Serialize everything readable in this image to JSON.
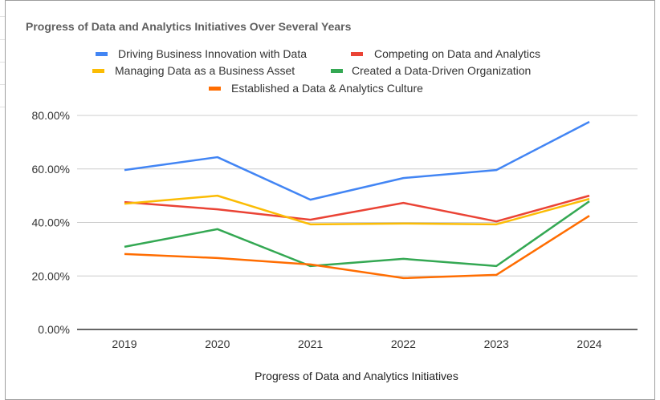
{
  "chart_data": {
    "type": "line",
    "title": "Progress of Data and Analytics Initiatives Over Several Years",
    "xlabel": "Progress of Data and Analytics Initiatives",
    "ylabel": "",
    "categories": [
      "2019",
      "2020",
      "2021",
      "2022",
      "2023",
      "2024"
    ],
    "ylim": [
      0,
      80
    ],
    "yticks": [
      0,
      20,
      40,
      60,
      80
    ],
    "ytick_labels": [
      "0.00%",
      "20.00%",
      "40.00%",
      "60.00%",
      "80.00%"
    ],
    "grid": true,
    "legend_position": "top",
    "series": [
      {
        "name": "Driving Business Innovation with Data",
        "color": "#4285f4",
        "values": [
          59.6,
          64.4,
          48.5,
          56.6,
          59.6,
          77.6
        ]
      },
      {
        "name": "Competing on Data and Analytics",
        "color": "#ea4335",
        "values": [
          47.6,
          44.9,
          41.0,
          47.3,
          40.4,
          50.0
        ]
      },
      {
        "name": "Managing Data as a Business Asset",
        "color": "#fbbc04",
        "values": [
          47.0,
          50.0,
          39.3,
          39.6,
          39.3,
          48.8
        ]
      },
      {
        "name": "Created a Data-Driven Organization",
        "color": "#34a853",
        "values": [
          30.9,
          37.5,
          23.7,
          26.4,
          23.7,
          47.9
        ]
      },
      {
        "name": "Established a Data & Analytics Culture",
        "color": "#ff6d01",
        "values": [
          28.2,
          26.7,
          24.3,
          19.2,
          20.4,
          42.5
        ]
      }
    ]
  }
}
